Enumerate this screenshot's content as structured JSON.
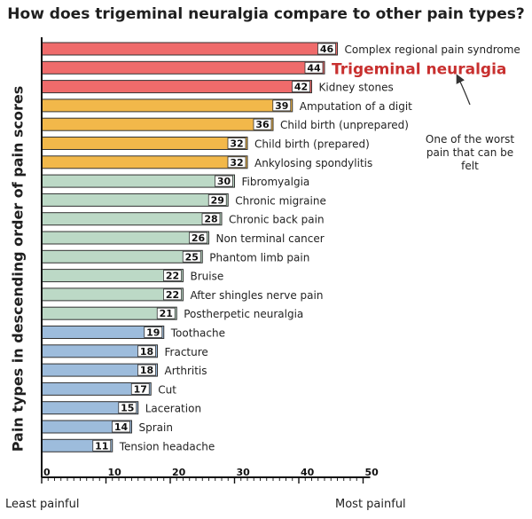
{
  "chart_data": {
    "type": "bar",
    "orientation": "horizontal",
    "title": "How does trigeminal neuralgia compare to other pain types?",
    "ylabel": "Pain types in descending order of pain scores",
    "xlabel_left": "Least painful",
    "xlabel_right": "Most painful",
    "xlim": [
      0,
      50
    ],
    "xticks": [
      "0",
      "10",
      "20",
      "30",
      "40",
      "50"
    ],
    "grid": false,
    "categories": [
      "Complex regional pain syndrome",
      "Trigeminal neuralgia",
      "Kidney stones",
      "Amputation of a digit",
      "Child birth (unprepared)",
      "Child birth (prepared)",
      "Ankylosing spondylitis",
      "Fibromyalgia",
      "Chronic migraine",
      "Chronic back pain",
      "Non terminal cancer",
      "Phantom limb pain",
      "Bruise",
      "After shingles nerve pain",
      "Postherpetic neuralgia",
      "Toothache",
      "Fracture",
      "Arthritis",
      "Cut",
      "Laceration",
      "Sprain",
      "Tension headache"
    ],
    "values": [
      46,
      44,
      42,
      39,
      36,
      32,
      32,
      30,
      29,
      28,
      26,
      25,
      22,
      22,
      21,
      19,
      18,
      18,
      17,
      15,
      14,
      11
    ],
    "value_labels": [
      "46",
      "44",
      "42",
      "39",
      "36",
      "32",
      "32",
      "30",
      "29",
      "28",
      "26",
      "25",
      "22",
      "22",
      "21",
      "19",
      "18",
      "18",
      "17",
      "15",
      "14",
      "11"
    ],
    "groups": [
      0,
      0,
      0,
      1,
      1,
      1,
      1,
      2,
      2,
      2,
      2,
      2,
      2,
      2,
      2,
      3,
      3,
      3,
      3,
      3,
      3,
      3
    ],
    "group_colors": [
      "#ef6b6b",
      "#f2b84a",
      "#bcd9c6",
      "#9dbcdc"
    ],
    "highlight_index": 1,
    "highlight_color": "#c8302f",
    "annotation": "One of the worst pain that can be felt"
  }
}
